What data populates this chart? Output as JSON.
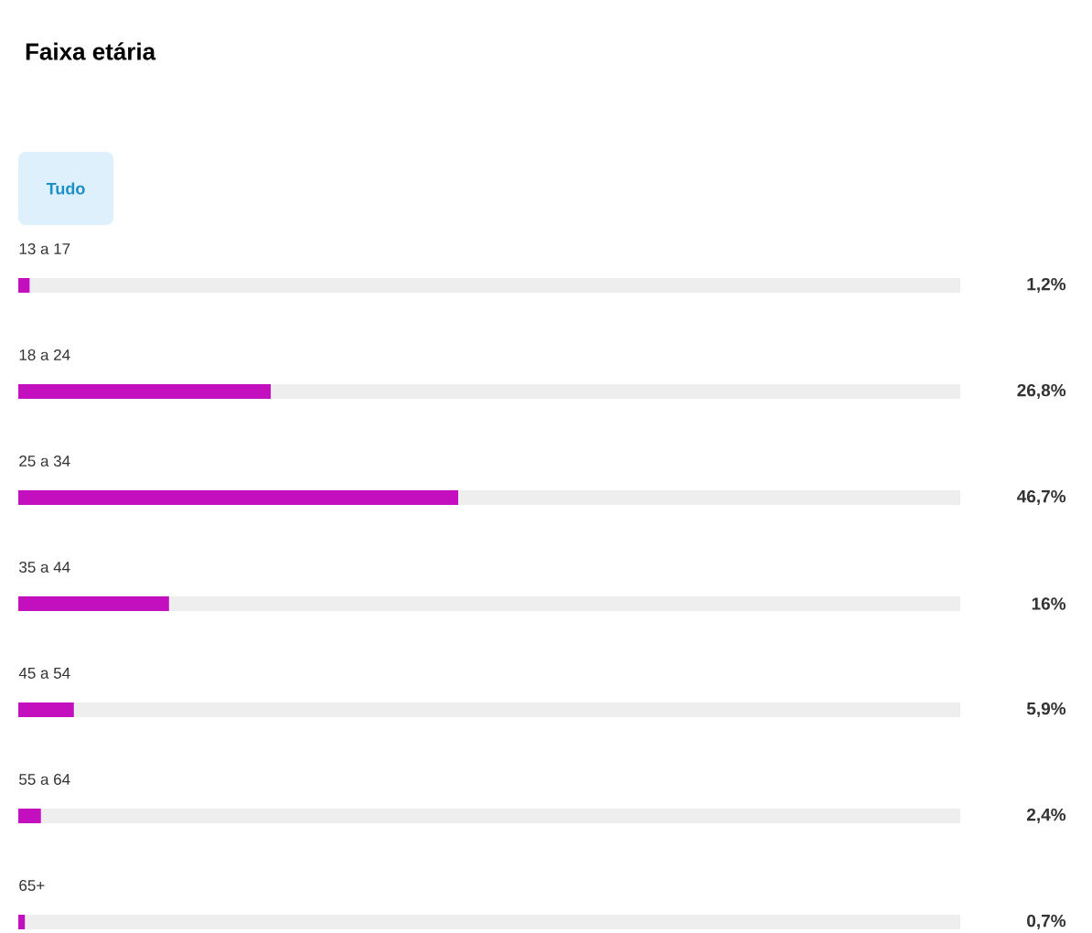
{
  "chart_data": {
    "type": "bar",
    "orientation": "horizontal",
    "title": "Faixa etária",
    "subtitle": "Tudo",
    "categories": [
      "13 a 17",
      "18 a 24",
      "25 a 34",
      "35 a 44",
      "45 a 54",
      "55 a 64",
      "65+"
    ],
    "values": [
      1.2,
      26.8,
      46.7,
      16,
      5.9,
      2.4,
      0.7
    ],
    "value_labels": [
      "1,2%",
      "26,8%",
      "46,7%",
      "16%",
      "5,9%",
      "2,4%",
      "0,7%"
    ],
    "color": "#c40fbf",
    "xlim": [
      0,
      100
    ],
    "data_labels": true
  }
}
